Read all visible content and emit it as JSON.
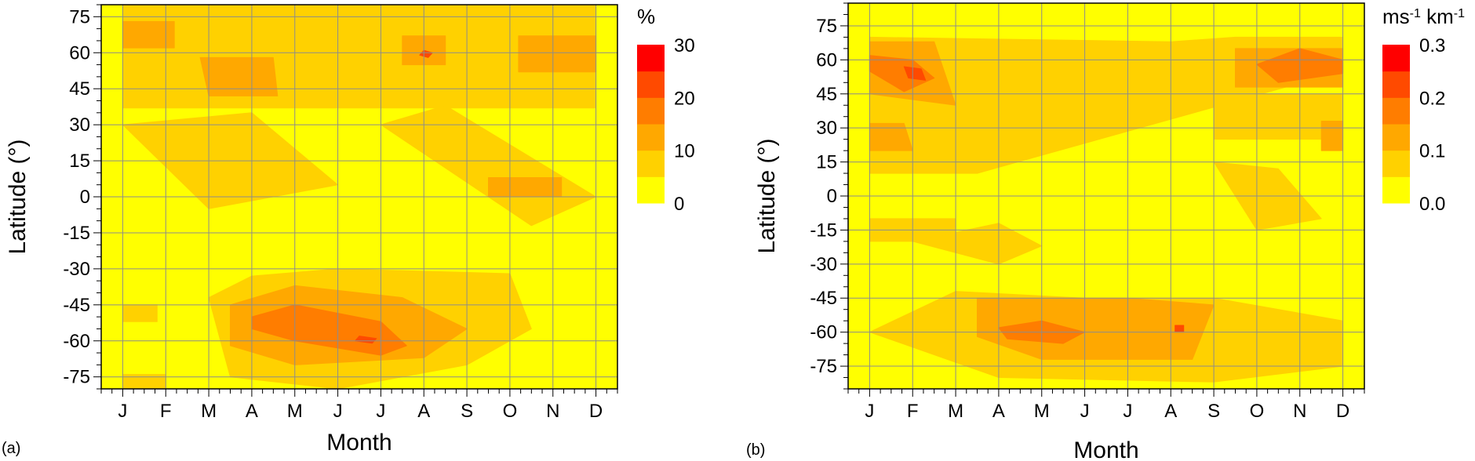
{
  "chart_data": [
    {
      "panel_tag": "(a)",
      "type": "heatmap",
      "subtype": "filled-contour",
      "xlabel": "Month",
      "ylabel": "Latitude (°)",
      "x_ticks": [
        "J",
        "F",
        "M",
        "A",
        "M",
        "J",
        "J",
        "A",
        "S",
        "O",
        "N",
        "D"
      ],
      "y_ticks": [
        "75",
        "60",
        "45",
        "30",
        "15",
        "0",
        "-15",
        "-30",
        "-45",
        "-60",
        "-75"
      ],
      "y_tick_values": [
        75,
        60,
        45,
        30,
        15,
        0,
        -15,
        -30,
        -45,
        -60,
        -75
      ],
      "ylim": [
        -80,
        80
      ],
      "grid": true,
      "colorbar": {
        "title": "%",
        "title_superscripts": [],
        "levels": [
          0,
          5,
          10,
          15,
          20,
          25,
          30
        ],
        "labels": [
          "0",
          "10",
          "20",
          "30"
        ],
        "label_values": [
          0,
          10,
          20,
          30
        ],
        "colors": [
          "#ffff00",
          "#ffd100",
          "#ffa800",
          "#ff7d00",
          "#ff4a00",
          "#ff0000"
        ]
      },
      "regions": [
        {
          "level": 1,
          "x": [
            1,
            1,
            12,
            12
          ],
          "y": [
            80,
            37,
            37,
            80
          ]
        },
        {
          "level": 1,
          "x": [
            1,
            4,
            6,
            3
          ],
          "y": [
            30,
            35,
            5,
            -5
          ]
        },
        {
          "level": 1,
          "x": [
            7,
            8.5,
            12,
            10.5
          ],
          "y": [
            30,
            38,
            0,
            -12
          ]
        },
        {
          "level": 1,
          "x": [
            3,
            4,
            6,
            10,
            10.5,
            9,
            6,
            3.5
          ],
          "y": [
            -42,
            -33,
            -30,
            -32,
            -55,
            -70,
            -80,
            -75
          ]
        },
        {
          "level": 1,
          "x": [
            1,
            1.8,
            1.8,
            1
          ],
          "y": [
            -45,
            -45,
            -52,
            -52
          ]
        },
        {
          "level": 1,
          "x": [
            1,
            2,
            2,
            1
          ],
          "y": [
            -74,
            -74,
            -80,
            -80
          ]
        },
        {
          "level": 2,
          "x": [
            1,
            2.2,
            2.2,
            1
          ],
          "y": [
            73,
            73,
            62,
            62
          ]
        },
        {
          "level": 2,
          "x": [
            2.8,
            4.5,
            4.6,
            3
          ],
          "y": [
            58,
            58,
            42,
            42
          ]
        },
        {
          "level": 2,
          "x": [
            7.5,
            8.5,
            8.5,
            7.5
          ],
          "y": [
            67,
            67,
            55,
            55
          ]
        },
        {
          "level": 2,
          "x": [
            10.2,
            12,
            12,
            10.2
          ],
          "y": [
            67,
            67,
            52,
            52
          ]
        },
        {
          "level": 2,
          "x": [
            9.5,
            11.2,
            11.2,
            9.5
          ],
          "y": [
            8,
            8,
            0,
            0
          ]
        },
        {
          "level": 2,
          "x": [
            3.5,
            5,
            7.5,
            9,
            8,
            5,
            3.5
          ],
          "y": [
            -45,
            -37,
            -42,
            -55,
            -67,
            -70,
            -62
          ]
        },
        {
          "level": 3,
          "x": [
            4,
            5,
            7,
            7.6,
            7,
            5,
            4
          ],
          "y": [
            -50,
            -45,
            -52,
            -62,
            -66,
            -60,
            -55
          ]
        },
        {
          "level": 4,
          "x": [
            6.5,
            6.9,
            6.8,
            6.4
          ],
          "y": [
            -58,
            -59,
            -61,
            -60
          ]
        },
        {
          "level": 4,
          "x": [
            8.0,
            8.2,
            8.1,
            7.9
          ],
          "y": [
            61,
            60,
            58,
            59
          ]
        }
      ]
    },
    {
      "panel_tag": "(b)",
      "type": "heatmap",
      "subtype": "filled-contour",
      "xlabel": "Month",
      "ylabel": "Latitude (°)",
      "x_ticks": [
        "J",
        "F",
        "M",
        "A",
        "M",
        "J",
        "J",
        "A",
        "S",
        "O",
        "N",
        "D"
      ],
      "y_ticks": [
        "75",
        "60",
        "45",
        "30",
        "15",
        "0",
        "-15",
        "-30",
        "-45",
        "-60",
        "-75"
      ],
      "y_tick_values": [
        75,
        60,
        45,
        30,
        15,
        0,
        -15,
        -30,
        -45,
        -60,
        -75
      ],
      "ylim": [
        -85,
        85
      ],
      "grid": true,
      "colorbar": {
        "title": "ms",
        "title_superscripts": [
          "-1",
          " km",
          "-1"
        ],
        "levels": [
          0.0,
          0.05,
          0.1,
          0.15,
          0.2,
          0.25,
          0.3
        ],
        "labels": [
          "0.0",
          "0.1",
          "0.2",
          "0.3"
        ],
        "label_values": [
          0.0,
          0.1,
          0.2,
          0.3
        ],
        "colors": [
          "#ffff00",
          "#ffd100",
          "#ffa800",
          "#ff7d00",
          "#ff4a00",
          "#ff0000"
        ]
      },
      "regions": [
        {
          "level": 1,
          "x": [
            1,
            1,
            3.5,
            12,
            12,
            9.5,
            8
          ],
          "y": [
            70,
            10,
            10,
            55,
            70,
            70,
            68
          ]
        },
        {
          "level": 1,
          "x": [
            9,
            12,
            12,
            9
          ],
          "y": [
            45,
            45,
            25,
            25
          ]
        },
        {
          "level": 1,
          "x": [
            1,
            3,
            3,
            1
          ],
          "y": [
            -10,
            -10,
            -20,
            -20
          ]
        },
        {
          "level": 1,
          "x": [
            2,
            4,
            5,
            4
          ],
          "y": [
            -20,
            -12,
            -22,
            -30
          ]
        },
        {
          "level": 1,
          "x": [
            9,
            10.5,
            11.5,
            10
          ],
          "y": [
            15,
            12,
            -10,
            -15
          ]
        },
        {
          "level": 1,
          "x": [
            1,
            3,
            6,
            9,
            12,
            12,
            9,
            4
          ],
          "y": [
            -60,
            -42,
            -45,
            -45,
            -55,
            -75,
            -82,
            -80
          ]
        },
        {
          "level": 2,
          "x": [
            1,
            2.5,
            3,
            1
          ],
          "y": [
            68,
            68,
            40,
            45
          ]
        },
        {
          "level": 2,
          "x": [
            9.5,
            12,
            12,
            9.5
          ],
          "y": [
            65,
            65,
            48,
            48
          ]
        },
        {
          "level": 2,
          "x": [
            1,
            1.8,
            2,
            1
          ],
          "y": [
            32,
            32,
            20,
            20
          ]
        },
        {
          "level": 2,
          "x": [
            11.5,
            12,
            12,
            11.5
          ],
          "y": [
            33,
            33,
            20,
            20
          ]
        },
        {
          "level": 2,
          "x": [
            3.5,
            7,
            9,
            8.5,
            5,
            3.5
          ],
          "y": [
            -45,
            -45,
            -48,
            -72,
            -72,
            -62
          ]
        },
        {
          "level": 3,
          "x": [
            1,
            2,
            2.5,
            1.8,
            1
          ],
          "y": [
            62,
            60,
            52,
            46,
            55
          ]
        },
        {
          "level": 3,
          "x": [
            10,
            11,
            12,
            12,
            10.5
          ],
          "y": [
            58,
            65,
            60,
            54,
            50
          ]
        },
        {
          "level": 3,
          "x": [
            4,
            5,
            6,
            5.5,
            4.2
          ],
          "y": [
            -58,
            -55,
            -60,
            -65,
            -63
          ]
        },
        {
          "level": 4,
          "x": [
            1.8,
            2.2,
            2.3,
            1.9
          ],
          "y": [
            57,
            56,
            51,
            52
          ]
        },
        {
          "level": 4,
          "x": [
            8.1,
            8.3,
            8.3,
            8.1
          ],
          "y": [
            -57,
            -57,
            -60,
            -60
          ]
        }
      ]
    }
  ]
}
